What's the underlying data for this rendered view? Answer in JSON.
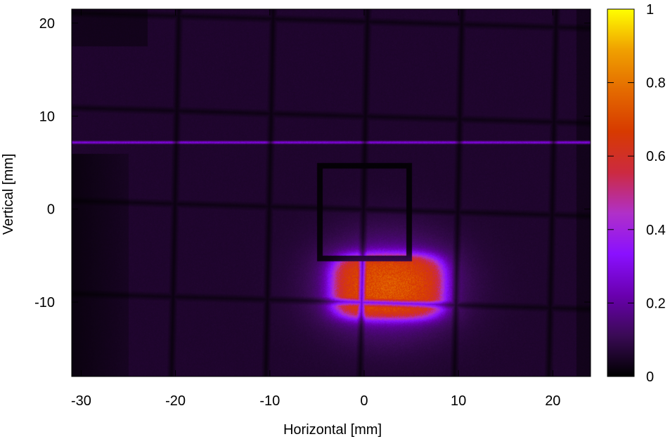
{
  "chart_data": {
    "type": "heatmap",
    "title": "",
    "xlabel": "Horizontal [mm]",
    "ylabel": "Vertical [mm]",
    "xlim": [
      -31,
      24
    ],
    "ylim": [
      -18,
      21.5
    ],
    "x_ticks": [
      -30,
      -20,
      -10,
      0,
      10,
      20
    ],
    "x_tick_labels": [
      "-30",
      "-20",
      "-10",
      "0",
      "10",
      "20"
    ],
    "y_ticks": [
      -10,
      0,
      10,
      20
    ],
    "y_tick_labels": [
      "-10",
      "0",
      "10",
      "20"
    ],
    "colorbar": {
      "range": [
        0,
        1
      ],
      "ticks": [
        0,
        0.2,
        0.4,
        0.6,
        0.8,
        1
      ],
      "tick_labels": [
        "0",
        "0.2",
        "0.4",
        "0.6",
        "0.8",
        "1"
      ],
      "colormap": [
        "#000000",
        "#3a0a55",
        "#6a00b0",
        "#8a10ff",
        "#b030c8",
        "#cc2a40",
        "#d73a00",
        "#e46a00",
        "#f0a000",
        "#ffff00"
      ]
    },
    "background_intensity": 0.06,
    "features": {
      "beam_spot": {
        "center": [
          2.5,
          -8.3
        ],
        "half_width": [
          6.0,
          3.5
        ],
        "peak": 0.55,
        "halo_extent": [
          10.0,
          7.5
        ]
      },
      "horizontal_band": {
        "y": 7.2,
        "value": 0.28
      },
      "grid_lines_vertical_x": [
        -20,
        -10,
        0,
        10,
        20
      ],
      "grid_lines_horizontal_y": [
        20,
        10,
        0,
        -10
      ],
      "square_outline": {
        "x": [
          -4.7,
          4.7
        ],
        "y": [
          -5.3,
          4.7
        ]
      },
      "dark_edge_x_below": -25
    }
  }
}
